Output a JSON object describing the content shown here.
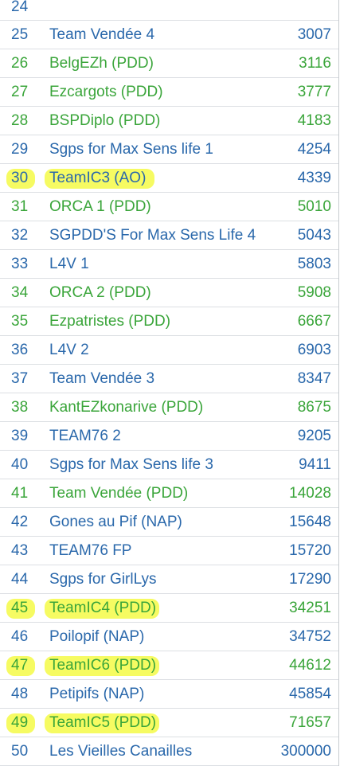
{
  "leaderboard": {
    "rows": [
      {
        "rank": "24",
        "name": "",
        "score": "",
        "color": "#2a68ab"
      },
      {
        "rank": "25",
        "name": "Team Vendée 4",
        "score": "3007",
        "color": "#2a68ab"
      },
      {
        "rank": "26",
        "name": "BelgEZh (PDD)",
        "score": "3116",
        "color": "#3aa53a"
      },
      {
        "rank": "27",
        "name": "Ezcargots (PDD)",
        "score": "3777",
        "color": "#3aa53a"
      },
      {
        "rank": "28",
        "name": "BSPDiplo (PDD)",
        "score": "4183",
        "color": "#3aa53a"
      },
      {
        "rank": "29",
        "name": "Sgps for Max Sens life 1",
        "score": "4254",
        "color": "#2a68ab"
      },
      {
        "rank": "30",
        "name": "TeamIC3 (AO)",
        "score": "4339",
        "color": "#2a68ab",
        "highlighted": true
      },
      {
        "rank": "31",
        "name": "ORCA 1 (PDD)",
        "score": "5010",
        "color": "#3aa53a"
      },
      {
        "rank": "32",
        "name": "SGPDD'S For Max Sens Life 4",
        "score": "5043",
        "color": "#2a68ab"
      },
      {
        "rank": "33",
        "name": "L4V 1",
        "score": "5803",
        "color": "#2a68ab"
      },
      {
        "rank": "34",
        "name": "ORCA 2 (PDD)",
        "score": "5908",
        "color": "#3aa53a"
      },
      {
        "rank": "35",
        "name": "Ezpatristes (PDD)",
        "score": "6667",
        "color": "#3aa53a"
      },
      {
        "rank": "36",
        "name": "L4V 2",
        "score": "6903",
        "color": "#2a68ab"
      },
      {
        "rank": "37",
        "name": "Team Vendée 3",
        "score": "8347",
        "color": "#2a68ab"
      },
      {
        "rank": "38",
        "name": "KantEZkonarive (PDD)",
        "score": "8675",
        "color": "#3aa53a"
      },
      {
        "rank": "39",
        "name": "TEAM76 2",
        "score": "9205",
        "color": "#2a68ab"
      },
      {
        "rank": "40",
        "name": "Sgps for Max Sens life 3",
        "score": "9411",
        "color": "#2a68ab"
      },
      {
        "rank": "41",
        "name": "Team Vendée (PDD)",
        "score": "14028",
        "color": "#3aa53a"
      },
      {
        "rank": "42",
        "name": "Gones au Pif (NAP)",
        "score": "15648",
        "color": "#2a68ab"
      },
      {
        "rank": "43",
        "name": "TEAM76 FP",
        "score": "15720",
        "color": "#2a68ab"
      },
      {
        "rank": "44",
        "name": "Sgps for GirlLys",
        "score": "17290",
        "color": "#2a68ab"
      },
      {
        "rank": "45",
        "name": "TeamIC4 (PDD)",
        "score": "34251",
        "color": "#3aa53a",
        "highlighted": true
      },
      {
        "rank": "46",
        "name": "Poilopif (NAP)",
        "score": "34752",
        "color": "#2a68ab"
      },
      {
        "rank": "47",
        "name": "TeamIC6 (PDD)",
        "score": "44612",
        "color": "#3aa53a",
        "highlighted": true
      },
      {
        "rank": "48",
        "name": "Petipifs (NAP)",
        "score": "45854",
        "color": "#2a68ab"
      },
      {
        "rank": "49",
        "name": "TeamIC5 (PDD)",
        "score": "71657",
        "color": "#3aa53a",
        "highlighted": true
      },
      {
        "rank": "50",
        "name": "Les Vieilles Canailles",
        "score": "300000",
        "color": "#2a68ab"
      }
    ],
    "highlight_color": "#f6fb5a"
  }
}
